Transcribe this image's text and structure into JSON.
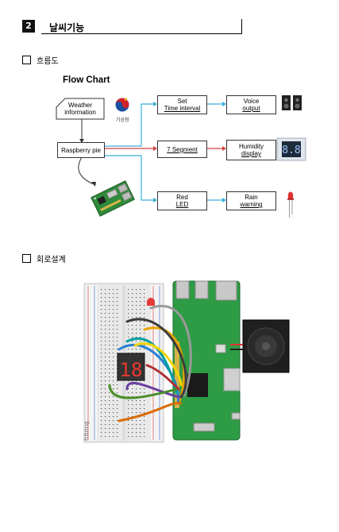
{
  "header": {
    "number": "2",
    "title": "날씨기능"
  },
  "sections": {
    "flow": {
      "label": "흐름도"
    },
    "circuit": {
      "label": "회로설계"
    }
  },
  "flowchart": {
    "title": "Flow Chart",
    "agency_label": "기상청",
    "boxes": {
      "weather": [
        "Weather",
        "information"
      ],
      "pi": [
        "Raspberry pie"
      ],
      "time": [
        "Set",
        "Time interval"
      ],
      "voice": [
        "Voice",
        "output"
      ],
      "seg": [
        "7 Segment"
      ],
      "humid": [
        "Humidity",
        "display"
      ],
      "led": [
        "Red",
        "LED"
      ],
      "rain": [
        "Rain",
        "warning"
      ]
    },
    "colors": {
      "cyan": "#3aaed8",
      "red": "#d04040",
      "dark": "#333333"
    }
  },
  "circuit": {
    "watermark": "fritzing",
    "seg_digits": "18"
  }
}
